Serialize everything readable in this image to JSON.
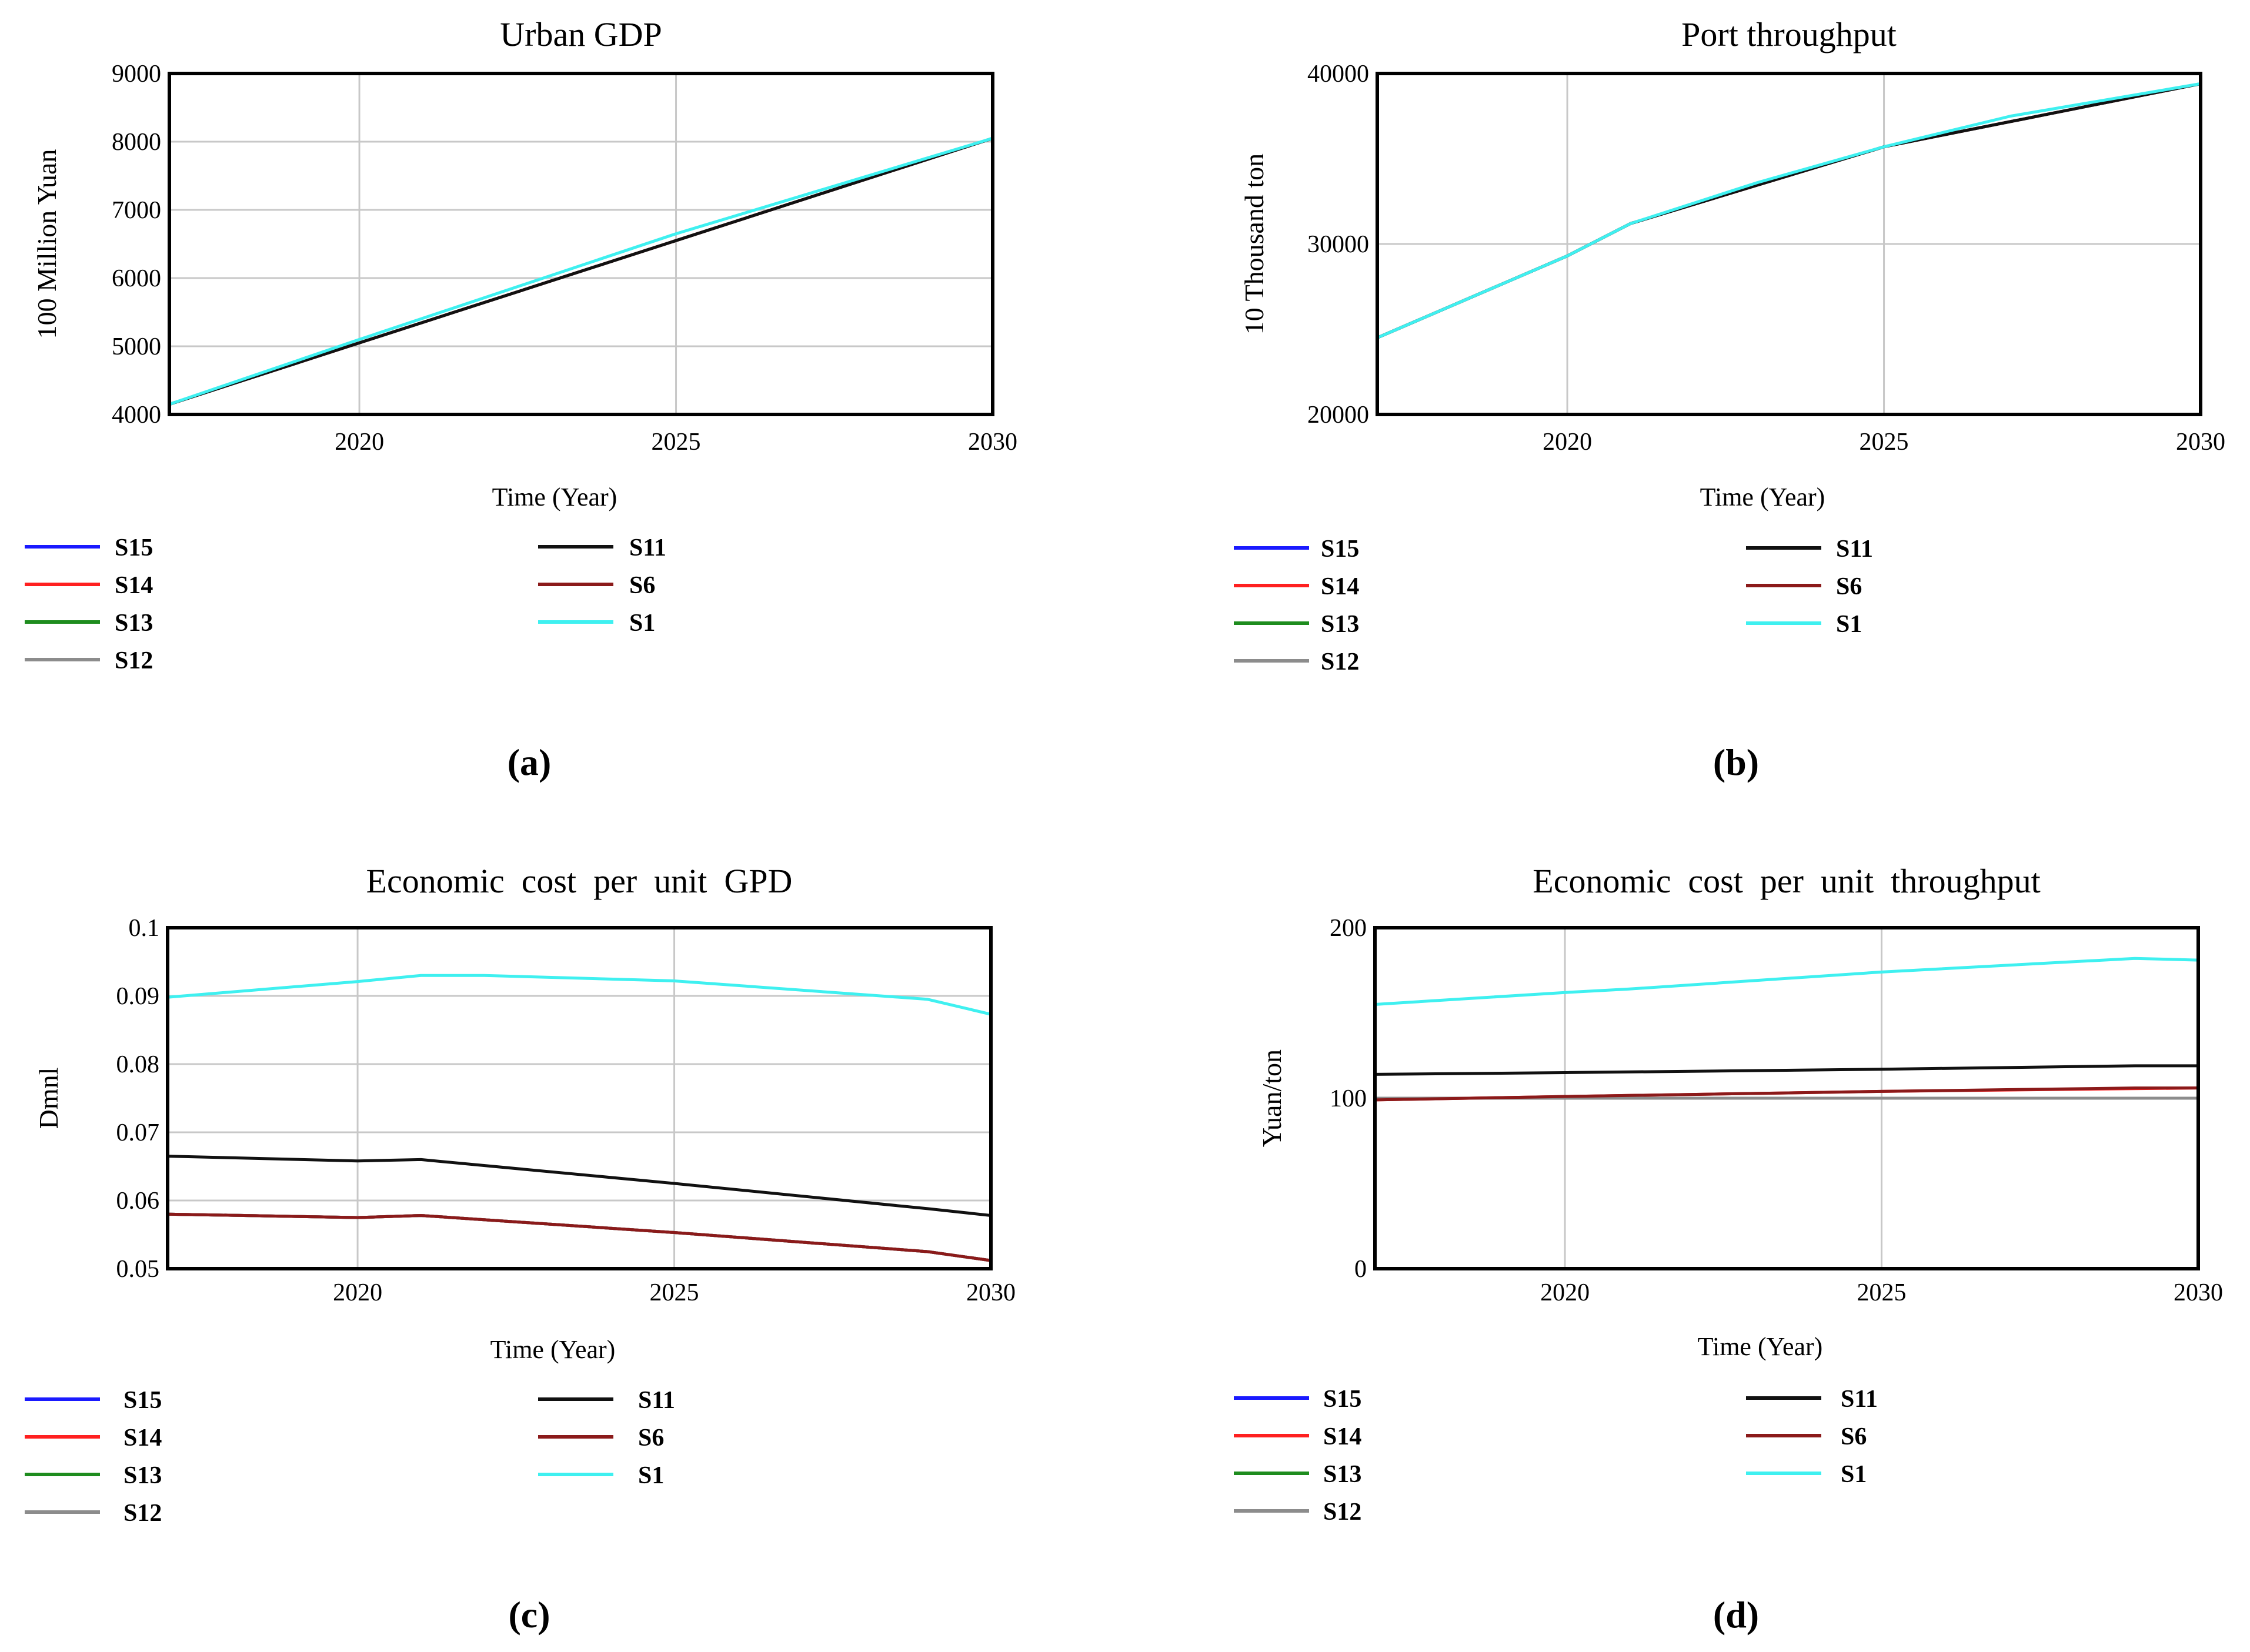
{
  "figure": {
    "panels": [
      {
        "title": "Urban GDP",
        "ylabel": "100 Million Yuan",
        "xlabel": "Time (Year)",
        "caption": "(a)",
        "xticks": [
          "2020",
          "2025",
          "2030"
        ],
        "yticks": [
          "4000",
          "5000",
          "6000",
          "7000",
          "8000",
          "9000"
        ],
        "legend_left": [
          "S15",
          "S14",
          "S13",
          "S12"
        ],
        "legend_right": [
          "S11",
          "S6",
          "S1"
        ]
      },
      {
        "title": "Port throughput",
        "ylabel": "10 Thousand ton",
        "xlabel": "Time (Year)",
        "caption": "(b)",
        "xticks": [
          "2020",
          "2025",
          "2030"
        ],
        "yticks": [
          "20000",
          "30000",
          "40000"
        ],
        "legend_left": [
          "S15",
          "S14",
          "S13",
          "S12"
        ],
        "legend_right": [
          "S11",
          "S6",
          "S1"
        ]
      },
      {
        "title": "Economic  cost  per  unit  GPD",
        "ylabel": "Dmnl",
        "xlabel": "Time (Year)",
        "caption": "(c)",
        "xticks": [
          "2020",
          "2025",
          "2030"
        ],
        "yticks": [
          "0.05",
          "0.06",
          "0.07",
          "0.08",
          "0.09",
          "0.1"
        ],
        "legend_left": [
          "S15",
          "S14",
          "S13",
          "S12"
        ],
        "legend_right": [
          "S11",
          "S6",
          "S1"
        ]
      },
      {
        "title": "Economic  cost  per  unit  throughput",
        "ylabel": "Yuan/ton",
        "xlabel": "Time (Year)",
        "caption": "(d)",
        "xticks": [
          "2020",
          "2025",
          "2030"
        ],
        "yticks": [
          "0",
          "100",
          "200"
        ],
        "legend_left": [
          "S15",
          "S14",
          "S13",
          "S12"
        ],
        "legend_right": [
          "S11",
          "S6",
          "S1"
        ]
      }
    ]
  },
  "series_colors": {
    "S15": "#1a1aff",
    "S14": "#ff2020",
    "S13": "#1e8c1e",
    "S12": "#8c8c8c",
    "S11": "#111111",
    "S6": "#8b1a1a",
    "S1": "#3ff0f0"
  },
  "chart_data": [
    {
      "type": "line",
      "title": "Urban GDP",
      "xlabel": "Time (Year)",
      "ylabel": "100 Million Yuan",
      "xlim": [
        2017,
        2030
      ],
      "ylim": [
        4000,
        9000
      ],
      "grid": true,
      "legend_placement": "below",
      "series": [
        {
          "name": "S15",
          "x": [
            2017,
            2030
          ],
          "y": [
            4150,
            8050
          ]
        },
        {
          "name": "S14",
          "x": [
            2017,
            2030
          ],
          "y": [
            4150,
            8050
          ]
        },
        {
          "name": "S13",
          "x": [
            2017,
            2030
          ],
          "y": [
            4150,
            8050
          ]
        },
        {
          "name": "S12",
          "x": [
            2017,
            2030
          ],
          "y": [
            4150,
            8050
          ]
        },
        {
          "name": "S11",
          "x": [
            2017,
            2030
          ],
          "y": [
            4150,
            8050
          ]
        },
        {
          "name": "S6",
          "x": [
            2017,
            2030
          ],
          "y": [
            4150,
            8050
          ]
        },
        {
          "name": "S1",
          "x": [
            2017,
            2020,
            2025,
            2030
          ],
          "y": [
            4150,
            5100,
            6650,
            8050
          ]
        }
      ]
    },
    {
      "type": "line",
      "title": "Port throughput",
      "xlabel": "Time (Year)",
      "ylabel": "10 Thousand ton",
      "xlim": [
        2017,
        2030
      ],
      "ylim": [
        20000,
        40000
      ],
      "grid": true,
      "legend_placement": "below",
      "series": [
        {
          "name": "S15",
          "x": [
            2017,
            2020,
            2021,
            2025,
            2030
          ],
          "y": [
            24500,
            29300,
            31200,
            35700,
            39400
          ]
        },
        {
          "name": "S14",
          "x": [
            2017,
            2020,
            2021,
            2025,
            2030
          ],
          "y": [
            24500,
            29300,
            31200,
            35700,
            39400
          ]
        },
        {
          "name": "S13",
          "x": [
            2017,
            2020,
            2021,
            2025,
            2030
          ],
          "y": [
            24500,
            29300,
            31200,
            35700,
            39400
          ]
        },
        {
          "name": "S12",
          "x": [
            2017,
            2020,
            2021,
            2025,
            2030
          ],
          "y": [
            24500,
            29300,
            31200,
            35700,
            39400
          ]
        },
        {
          "name": "S11",
          "x": [
            2017,
            2020,
            2021,
            2025,
            2030
          ],
          "y": [
            24500,
            29300,
            31200,
            35700,
            39400
          ]
        },
        {
          "name": "S6",
          "x": [
            2017,
            2020,
            2021,
            2025,
            2030
          ],
          "y": [
            24500,
            29300,
            31200,
            35700,
            39400
          ]
        },
        {
          "name": "S1",
          "x": [
            2017,
            2020,
            2021,
            2023,
            2025,
            2027,
            2030
          ],
          "y": [
            24500,
            29300,
            31200,
            33600,
            35700,
            37500,
            39400
          ]
        }
      ]
    },
    {
      "type": "line",
      "title": "Economic  cost  per  unit  GPD",
      "xlabel": "Time (Year)",
      "ylabel": "Dmnl",
      "xlim": [
        2017,
        2030
      ],
      "ylim": [
        0.05,
        0.1
      ],
      "grid": true,
      "legend_placement": "below",
      "series": [
        {
          "name": "S15",
          "x": [
            2017,
            2020,
            2021,
            2025,
            2029,
            2030
          ],
          "y": [
            0.058,
            0.0575,
            0.0578,
            0.0553,
            0.0525,
            0.0512
          ]
        },
        {
          "name": "S14",
          "x": [
            2017,
            2020,
            2021,
            2025,
            2029,
            2030
          ],
          "y": [
            0.058,
            0.0575,
            0.0578,
            0.0553,
            0.0525,
            0.0512
          ]
        },
        {
          "name": "S13",
          "x": [
            2017,
            2020,
            2021,
            2025,
            2029,
            2030
          ],
          "y": [
            0.058,
            0.0575,
            0.0578,
            0.0553,
            0.0525,
            0.0512
          ]
        },
        {
          "name": "S12",
          "x": [
            2017,
            2020,
            2021,
            2025,
            2029,
            2030
          ],
          "y": [
            0.058,
            0.0575,
            0.0578,
            0.0553,
            0.0525,
            0.0512
          ]
        },
        {
          "name": "S11",
          "x": [
            2017,
            2020,
            2021,
            2025,
            2029,
            2030
          ],
          "y": [
            0.0665,
            0.0658,
            0.066,
            0.0625,
            0.0588,
            0.0578
          ]
        },
        {
          "name": "S6",
          "x": [
            2017,
            2020,
            2021,
            2025,
            2029,
            2030
          ],
          "y": [
            0.058,
            0.0575,
            0.0578,
            0.0553,
            0.0525,
            0.0512
          ]
        },
        {
          "name": "S1",
          "x": [
            2017,
            2020,
            2021,
            2022,
            2025,
            2029,
            2030
          ],
          "y": [
            0.0898,
            0.0921,
            0.093,
            0.093,
            0.0922,
            0.0895,
            0.0873
          ]
        }
      ]
    },
    {
      "type": "line",
      "title": "Economic  cost  per  unit  throughput",
      "xlabel": "Time (Year)",
      "ylabel": "Yuan/ton",
      "xlim": [
        2017,
        2030
      ],
      "ylim": [
        0,
        200
      ],
      "grid": true,
      "legend_placement": "below",
      "series": [
        {
          "name": "S15",
          "x": [
            2017,
            2020,
            2025,
            2030
          ],
          "y": [
            100,
            100,
            100,
            100
          ]
        },
        {
          "name": "S14",
          "x": [
            2017,
            2020,
            2025,
            2030
          ],
          "y": [
            99,
            101,
            104,
            106
          ]
        },
        {
          "name": "S13",
          "x": [
            2017,
            2020,
            2025,
            2030
          ],
          "y": [
            100,
            100,
            100,
            100
          ]
        },
        {
          "name": "S12",
          "x": [
            2017,
            2020,
            2025,
            2030
          ],
          "y": [
            100,
            100,
            100,
            100
          ]
        },
        {
          "name": "S11",
          "x": [
            2017,
            2020,
            2025,
            2029,
            2030
          ],
          "y": [
            114,
            115,
            117,
            119,
            119
          ]
        },
        {
          "name": "S6",
          "x": [
            2017,
            2020,
            2025,
            2029,
            2030
          ],
          "y": [
            99,
            101,
            104,
            106,
            106
          ]
        },
        {
          "name": "S1",
          "x": [
            2017,
            2020,
            2021,
            2025,
            2029,
            2030
          ],
          "y": [
            155,
            162,
            164,
            174,
            182,
            181
          ]
        }
      ]
    }
  ]
}
